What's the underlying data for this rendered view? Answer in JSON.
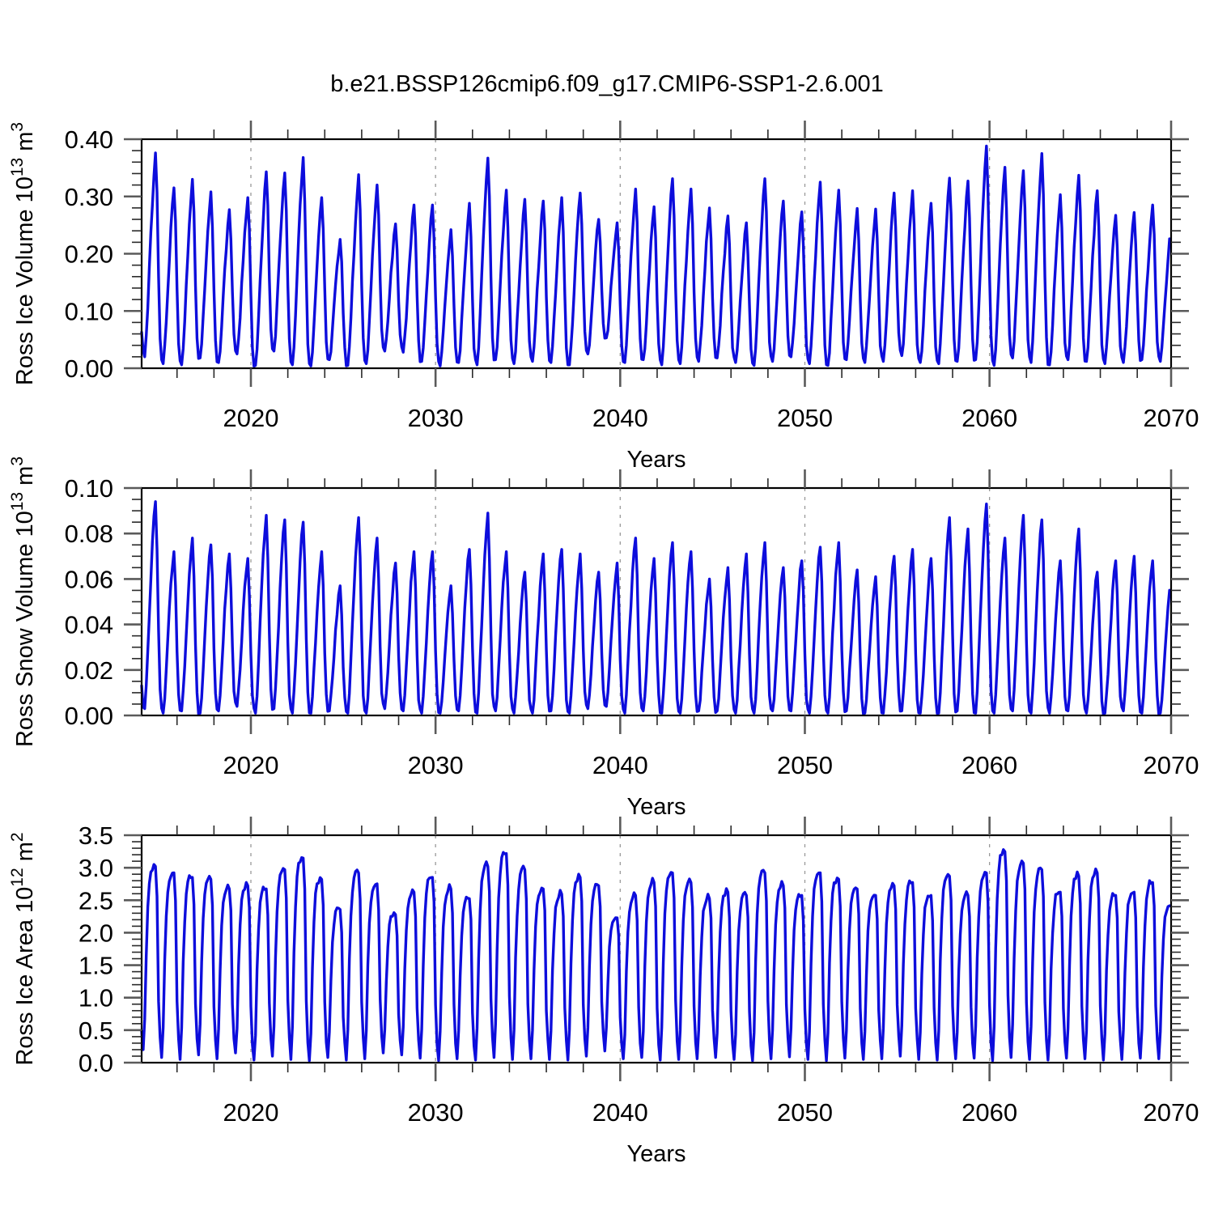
{
  "title": "b.e21.BSSP126cmip6.f09_g17.CMIP6-SSP1-2.6.001",
  "colors": {
    "line": "#0d0ddc",
    "frame": "#000000",
    "major_tick": "#5a5a5a",
    "minor_tick": "#2a2a2a",
    "grid": "#999999",
    "text": "#000000",
    "background": "#ffffff"
  },
  "x_axis": {
    "label": "Years",
    "domain_start": 2014.0833,
    "domain_end": 2069.8333,
    "major_ticks": [
      2020,
      2030,
      2040,
      2050,
      2060,
      2070
    ],
    "tick_labels": [
      "2020",
      "2030",
      "2040",
      "2050",
      "2060",
      "2070"
    ],
    "minor_step_years": 2,
    "gridline_years": [
      2020,
      2030,
      2040,
      2050,
      2060
    ],
    "grid_style": "dashed"
  },
  "chart_data": [
    {
      "type": "line",
      "panel": "ross-ice-volume",
      "ylabel_parts": [
        {
          "t": "Ross Ice Volume 10"
        },
        {
          "t": "13",
          "sup": true
        },
        {
          "t": " m"
        },
        {
          "t": "3",
          "sup": true
        }
      ],
      "xlabel": "Years",
      "ylim": [
        0,
        0.4
      ],
      "ytick_values": [
        0.0,
        0.1,
        0.2,
        0.3,
        0.4
      ],
      "ytick_labels": [
        "0.00",
        "0.10",
        "0.20",
        "0.30",
        "0.40"
      ],
      "yminor_step": 0.02,
      "resolution": "monthly seasonal cycle, years 2014-2069",
      "min_month": 3,
      "jitter": 0.012,
      "floor": 0.002,
      "seasonal_shape": [
        0.42,
        0.12,
        0.015,
        0.0,
        0.09,
        0.25,
        0.43,
        0.6,
        0.76,
        0.9,
        1.0,
        0.8
      ],
      "annual_max": [
        0.376,
        0.315,
        0.33,
        0.308,
        0.277,
        0.298,
        0.343,
        0.341,
        0.368,
        0.298,
        0.225,
        0.338,
        0.32,
        0.252,
        0.285,
        0.285,
        0.242,
        0.288,
        0.367,
        0.311,
        0.295,
        0.292,
        0.298,
        0.306,
        0.26,
        0.254,
        0.313,
        0.282,
        0.331,
        0.313,
        0.28,
        0.266,
        0.254,
        0.331,
        0.292,
        0.273,
        0.325,
        0.311,
        0.279,
        0.278,
        0.306,
        0.31,
        0.288,
        0.332,
        0.327,
        0.388,
        0.351,
        0.345,
        0.375,
        0.303,
        0.337,
        0.31,
        0.267,
        0.272,
        0.285,
        0.25
      ],
      "annual_min": [
        0.02,
        0.008,
        0.006,
        0.018,
        0.01,
        0.025,
        0.005,
        0.03,
        0.006,
        0.004,
        0.015,
        0.005,
        0.008,
        0.03,
        0.028,
        0.012,
        0.004,
        0.01,
        0.006,
        0.015,
        0.008,
        0.012,
        0.01,
        0.006,
        0.025,
        0.053,
        0.01,
        0.015,
        0.006,
        0.008,
        0.012,
        0.018,
        0.01,
        0.005,
        0.012,
        0.02,
        0.008,
        0.005,
        0.015,
        0.01,
        0.012,
        0.022,
        0.01,
        0.008,
        0.012,
        0.015,
        0.005,
        0.018,
        0.01,
        0.006,
        0.015,
        0.012,
        0.008,
        0.01,
        0.015,
        0.012
      ]
    },
    {
      "type": "line",
      "panel": "ross-snow-volume",
      "ylabel_parts": [
        {
          "t": "Ross Snow Volume 10"
        },
        {
          "t": "13",
          "sup": true
        },
        {
          "t": " m"
        },
        {
          "t": "3",
          "sup": true
        }
      ],
      "xlabel": "Years",
      "ylim": [
        0,
        0.1
      ],
      "ytick_values": [
        0.0,
        0.02,
        0.04,
        0.06,
        0.08,
        0.1
      ],
      "ytick_labels": [
        "0.00",
        "0.02",
        "0.04",
        "0.06",
        "0.08",
        "0.10"
      ],
      "yminor_step": 0.005,
      "resolution": "monthly seasonal cycle, years 2014-2069",
      "min_month": 3,
      "jitter": 0.003,
      "floor": 0.0005,
      "seasonal_shape": [
        0.38,
        0.1,
        0.012,
        0.0,
        0.1,
        0.27,
        0.45,
        0.63,
        0.79,
        0.92,
        1.0,
        0.78
      ],
      "annual_max": [
        0.094,
        0.072,
        0.078,
        0.075,
        0.071,
        0.069,
        0.088,
        0.086,
        0.085,
        0.072,
        0.057,
        0.087,
        0.078,
        0.067,
        0.072,
        0.072,
        0.057,
        0.073,
        0.089,
        0.072,
        0.063,
        0.071,
        0.073,
        0.071,
        0.063,
        0.067,
        0.078,
        0.069,
        0.076,
        0.072,
        0.06,
        0.065,
        0.071,
        0.076,
        0.065,
        0.068,
        0.074,
        0.076,
        0.064,
        0.061,
        0.07,
        0.073,
        0.069,
        0.087,
        0.082,
        0.093,
        0.078,
        0.088,
        0.086,
        0.068,
        0.082,
        0.063,
        0.068,
        0.07,
        0.068,
        0.061
      ],
      "annual_min": [
        0.003,
        0.001,
        0.002,
        0.001,
        0.002,
        0.004,
        0.001,
        0.003,
        0.001,
        0.001,
        0.002,
        0.001,
        0.001,
        0.003,
        0.002,
        0.001,
        0.001,
        0.002,
        0.001,
        0.002,
        0.001,
        0.001,
        0.002,
        0.001,
        0.003,
        0.004,
        0.001,
        0.002,
        0.001,
        0.001,
        0.002,
        0.002,
        0.001,
        0.001,
        0.002,
        0.002,
        0.001,
        0.001,
        0.002,
        0.001,
        0.001,
        0.002,
        0.001,
        0.001,
        0.002,
        0.001,
        0.001,
        0.002,
        0.001,
        0.001,
        0.002,
        0.001,
        0.001,
        0.002,
        0.001,
        0.001
      ]
    },
    {
      "type": "line",
      "panel": "ross-ice-area",
      "ylabel_parts": [
        {
          "t": "Ross Ice Area 10"
        },
        {
          "t": "12",
          "sup": true
        },
        {
          "t": " m"
        },
        {
          "t": "2",
          "sup": true
        }
      ],
      "xlabel": "Years",
      "ylim": [
        0,
        3.5
      ],
      "ytick_values": [
        0.0,
        0.5,
        1.0,
        1.5,
        2.0,
        2.5,
        3.0,
        3.5
      ],
      "ytick_labels": [
        "0.0",
        "0.5",
        "1.0",
        "1.5",
        "2.0",
        "2.5",
        "3.0",
        "3.5"
      ],
      "yminor_step": 0.1,
      "resolution": "monthly seasonal cycle, years 2014-2069",
      "min_month": 2,
      "jitter": 0.09,
      "floor": 0.02,
      "seasonal_shape": [
        0.3,
        0.1,
        0.0,
        0.16,
        0.52,
        0.76,
        0.9,
        0.96,
        0.985,
        1.0,
        0.99,
        0.85
      ],
      "annual_max": [
        3.05,
        2.95,
        2.88,
        2.85,
        2.7,
        2.75,
        2.7,
        3.0,
        3.18,
        2.85,
        2.38,
        2.95,
        2.78,
        2.3,
        2.65,
        2.88,
        2.7,
        2.55,
        3.05,
        3.25,
        3.0,
        2.7,
        2.62,
        2.88,
        2.75,
        2.25,
        2.6,
        2.8,
        2.95,
        2.8,
        2.55,
        2.65,
        2.6,
        2.95,
        2.75,
        2.6,
        2.95,
        2.85,
        2.7,
        2.6,
        2.75,
        2.8,
        2.6,
        2.9,
        2.6,
        2.95,
        3.28,
        3.1,
        3.0,
        2.65,
        2.9,
        2.95,
        2.6,
        2.65,
        2.8,
        2.45
      ],
      "annual_min": [
        0.2,
        0.08,
        0.05,
        0.12,
        0.06,
        0.15,
        0.04,
        0.1,
        0.05,
        0.03,
        0.08,
        0.04,
        0.06,
        0.15,
        0.12,
        0.07,
        0.03,
        0.06,
        0.04,
        0.08,
        0.05,
        0.06,
        0.05,
        0.04,
        0.1,
        0.18,
        0.06,
        0.08,
        0.04,
        0.05,
        0.06,
        0.08,
        0.05,
        0.03,
        0.06,
        0.09,
        0.05,
        0.03,
        0.07,
        0.05,
        0.06,
        0.1,
        0.05,
        0.04,
        0.06,
        0.07,
        0.03,
        0.08,
        0.05,
        0.04,
        0.07,
        0.06,
        0.04,
        0.05,
        0.07,
        0.06
      ]
    }
  ],
  "layout_note": "three stacked panels sharing one x axis scale 2014-2070"
}
